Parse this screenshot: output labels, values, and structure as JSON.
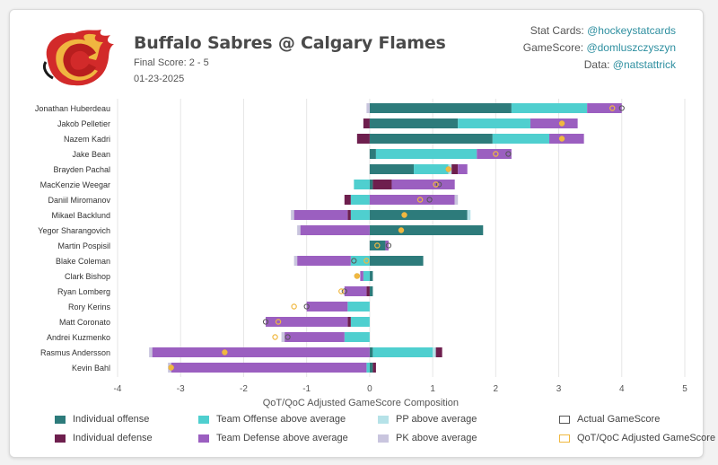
{
  "header": {
    "title": "Buffalo Sabres @ Calgary Flames",
    "final_score": "Final Score: 2 - 5",
    "date": "01-23-2025",
    "credits": [
      {
        "label": "Stat Cards:",
        "handle": "@hockeystatcards"
      },
      {
        "label": "GameScore:",
        "handle": "@domluszczyszyn"
      },
      {
        "label": "Data:",
        "handle": "@natstattrick"
      }
    ]
  },
  "logo_icon": "calgary-flames-logo",
  "colors": {
    "individual_offense": "#2d7b7b",
    "individual_defense": "#6e1f4e",
    "team_offense": "#4fcfcf",
    "team_defense": "#9b5fc0",
    "pp": "#b6e2e8",
    "pk": "#c9c5de",
    "actual_marker": "#555555",
    "adjusted_marker": "#f0b840"
  },
  "legend": [
    {
      "key": "individual_offense",
      "label": "Individual offense",
      "style": "fill"
    },
    {
      "key": "team_offense",
      "label": "Team Offense above average",
      "style": "fill"
    },
    {
      "key": "pp",
      "label": "PP above average",
      "style": "fill"
    },
    {
      "key": "actual_marker",
      "label": "Actual GameScore",
      "style": "outline"
    },
    {
      "key": "individual_defense",
      "label": "Individual defense",
      "style": "fill"
    },
    {
      "key": "team_defense",
      "label": "Team Defense above average",
      "style": "fill"
    },
    {
      "key": "pk",
      "label": "PK above average",
      "style": "fill"
    },
    {
      "key": "adjusted_marker",
      "label": "QoT/QoC Adjusted GameScore",
      "style": "outline"
    }
  ],
  "chart_data": {
    "type": "bar",
    "orientation": "horizontal-stacked-diverging",
    "xlabel": "QoT/QoC Adjusted GameScore Composition",
    "xlim": [
      -4,
      5
    ],
    "xticks": [
      "-4",
      "-3",
      "-2",
      "-1",
      "0",
      "1",
      "2",
      "3",
      "4",
      "5"
    ],
    "grid": true,
    "components": [
      "individual_offense",
      "team_offense",
      "pp",
      "individual_defense",
      "team_defense",
      "pk"
    ],
    "players": [
      {
        "name": "Jonathan Huberdeau",
        "individual_offense": 2.25,
        "team_offense": 1.2,
        "pp": 0.0,
        "individual_defense": 0.0,
        "team_defense": 0.55,
        "pk": -0.05,
        "actual": 4.0,
        "adjusted": 3.85
      },
      {
        "name": "Jakob Pelletier",
        "individual_offense": 1.4,
        "team_offense": 1.15,
        "pp": 0.0,
        "individual_defense": -0.1,
        "team_defense": 0.75,
        "pk": 0.0,
        "actual": 3.05,
        "adjusted": 3.05
      },
      {
        "name": "Nazem Kadri",
        "individual_offense": 1.95,
        "team_offense": 0.9,
        "pp": 0.0,
        "individual_defense": -0.2,
        "team_defense": 0.55,
        "pk": 0.0,
        "actual": 3.05,
        "adjusted": 3.05
      },
      {
        "name": "Jake Bean",
        "individual_offense": 0.1,
        "team_offense": 1.6,
        "pp": 0.0,
        "individual_defense": 0.0,
        "team_defense": 0.55,
        "pk": 0.0,
        "actual": 2.2,
        "adjusted": 2.0
      },
      {
        "name": "Brayden Pachal",
        "individual_offense": 0.7,
        "team_offense": 0.55,
        "pp": 0.05,
        "individual_defense": 0.1,
        "team_defense": 0.15,
        "pk": 0.0,
        "actual": 1.25,
        "adjusted": 1.25
      },
      {
        "name": "MacKenzie Weegar",
        "individual_offense": 0.05,
        "team_offense": -0.25,
        "pp": 0.0,
        "individual_defense": 0.3,
        "team_defense": 1.0,
        "pk": 0.0,
        "actual": 1.1,
        "adjusted": 1.05
      },
      {
        "name": "Daniil Miromanov",
        "individual_offense": 0.0,
        "team_offense": -0.3,
        "pp": 0.0,
        "individual_defense": -0.1,
        "team_defense": 1.35,
        "pk": 0.05,
        "actual": 0.95,
        "adjusted": 0.8
      },
      {
        "name": "Mikael Backlund",
        "individual_offense": 1.55,
        "team_offense": -0.3,
        "pp": 0.05,
        "individual_defense": -0.05,
        "team_defense": -0.85,
        "pk": -0.05,
        "actual": 0.55,
        "adjusted": 0.55
      },
      {
        "name": "Yegor Sharangovich",
        "individual_offense": 1.8,
        "team_offense": 0.0,
        "pp": 0.0,
        "individual_defense": 0.0,
        "team_defense": -1.1,
        "pk": -0.05,
        "actual": 0.5,
        "adjusted": 0.5
      },
      {
        "name": "Martin Pospisil",
        "individual_offense": 0.25,
        "team_offense": 0.0,
        "pp": 0.0,
        "individual_defense": 0.0,
        "team_defense": 0.05,
        "pk": 0.0,
        "actual": 0.3,
        "adjusted": 0.12
      },
      {
        "name": "Blake Coleman",
        "individual_offense": 0.85,
        "team_offense": -0.3,
        "pp": 0.0,
        "individual_defense": 0.0,
        "team_defense": -0.85,
        "pk": -0.05,
        "actual": -0.25,
        "adjusted": -0.05
      },
      {
        "name": "Clark Bishop",
        "individual_offense": 0.05,
        "team_offense": -0.1,
        "pp": 0.0,
        "individual_defense": 0.0,
        "team_defense": -0.05,
        "pk": 0.0,
        "actual": -0.2,
        "adjusted": -0.2
      },
      {
        "name": "Ryan Lomberg",
        "individual_offense": 0.05,
        "team_offense": 0.0,
        "pp": 0.0,
        "individual_defense": -0.05,
        "team_defense": -0.35,
        "pk": 0.0,
        "actual": -0.4,
        "adjusted": -0.45
      },
      {
        "name": "Rory Kerins",
        "individual_offense": 0.0,
        "team_offense": -0.35,
        "pp": 0.0,
        "individual_defense": 0.0,
        "team_defense": -0.65,
        "pk": 0.0,
        "actual": -1.0,
        "adjusted": -1.2
      },
      {
        "name": "Matt Coronato",
        "individual_offense": 0.0,
        "team_offense": -0.3,
        "pp": 0.0,
        "individual_defense": -0.05,
        "team_defense": -1.3,
        "pk": 0.0,
        "actual": -1.65,
        "adjusted": -1.45
      },
      {
        "name": "Andrei Kuzmenko",
        "individual_offense": 0.0,
        "team_offense": -0.4,
        "pp": 0.0,
        "individual_defense": 0.0,
        "team_defense": -0.95,
        "pk": -0.05,
        "actual": -1.3,
        "adjusted": -1.5
      },
      {
        "name": "Rasmus Andersson",
        "individual_offense": 0.05,
        "team_offense": 0.95,
        "pp": 0.05,
        "individual_defense": 0.1,
        "team_defense": -3.45,
        "pk": -0.05,
        "actual": -2.3,
        "adjusted": -2.3
      },
      {
        "name": "Kevin Bahl",
        "individual_offense": 0.05,
        "team_offense": -0.05,
        "pp": 0.0,
        "individual_defense": 0.05,
        "team_defense": -3.1,
        "pk": -0.05,
        "actual": -3.15,
        "adjusted": -3.15
      }
    ]
  }
}
